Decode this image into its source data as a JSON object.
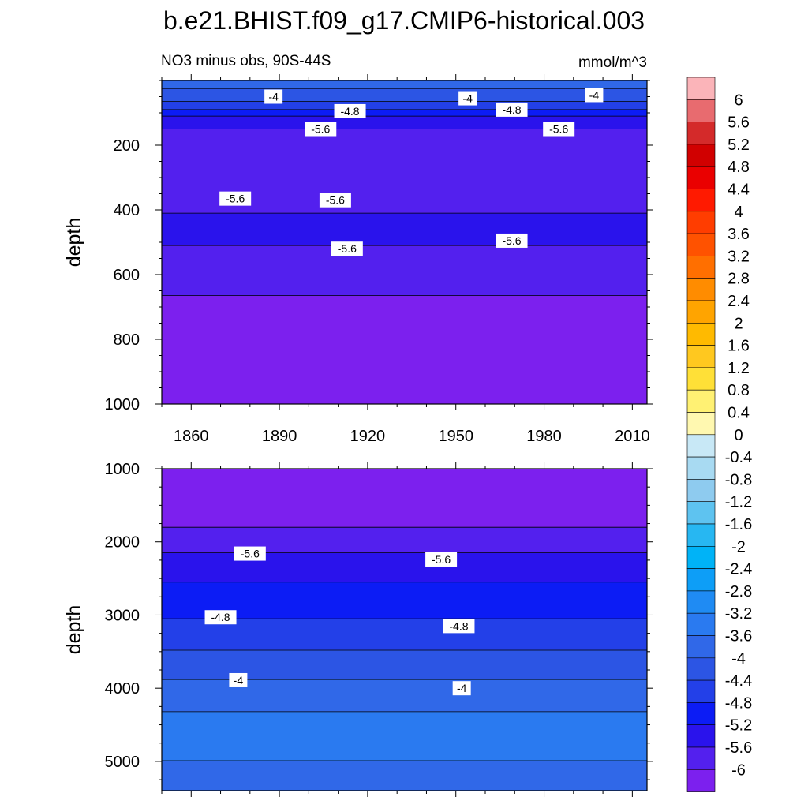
{
  "figure": {
    "title": "b.e21.BHIST.f09_g17.CMIP6-historical.003",
    "subtitle_left": "NO3 minus obs, 90S-44S",
    "subtitle_right": "mmol/m^3"
  },
  "chart_data": [
    {
      "type": "heatmap",
      "panel": "upper",
      "title": "NO3 minus obs, 90S-44S",
      "units": "mmol/m^3",
      "xlabel": "",
      "ylabel": "depth",
      "xlim": [
        1850,
        2015
      ],
      "ylim": [
        1000,
        0
      ],
      "xticks": [
        1860,
        1890,
        1920,
        1950,
        1980,
        2010
      ],
      "yticks": [
        200,
        400,
        600,
        800,
        1000
      ],
      "bands": [
        {
          "top": 0,
          "bottom": 25,
          "value": -3.6
        },
        {
          "top": 25,
          "bottom": 65,
          "value": -4.0
        },
        {
          "top": 65,
          "bottom": 90,
          "value": -4.4
        },
        {
          "top": 90,
          "bottom": 110,
          "value": -4.8
        },
        {
          "top": 110,
          "bottom": 150,
          "value": -5.2
        },
        {
          "top": 150,
          "bottom": 410,
          "value": -5.6
        },
        {
          "top": 410,
          "bottom": 510,
          "value": -5.2
        },
        {
          "top": 510,
          "bottom": 665,
          "value": -5.6
        },
        {
          "top": 665,
          "bottom": 1000,
          "value": -6.0
        }
      ],
      "contour_labels": [
        {
          "text": "-4",
          "x": 1888,
          "depth": 50
        },
        {
          "text": "-4",
          "x": 1954,
          "depth": 55
        },
        {
          "text": "-4",
          "x": 1997,
          "depth": 45
        },
        {
          "text": "-4.8",
          "x": 1914,
          "depth": 95
        },
        {
          "text": "-4.8",
          "x": 1969,
          "depth": 90
        },
        {
          "text": "-5.6",
          "x": 1904,
          "depth": 150
        },
        {
          "text": "-5.6",
          "x": 1985,
          "depth": 150
        },
        {
          "text": "-5.6",
          "x": 1875,
          "depth": 365
        },
        {
          "text": "-5.6",
          "x": 1909,
          "depth": 370
        },
        {
          "text": "-5.6",
          "x": 1913,
          "depth": 520
        },
        {
          "text": "-5.6",
          "x": 1969,
          "depth": 495
        }
      ]
    },
    {
      "type": "heatmap",
      "panel": "lower",
      "xlabel": "",
      "ylabel": "depth",
      "xlim": [
        1850,
        2015
      ],
      "ylim": [
        5400,
        1000
      ],
      "yticks": [
        1000,
        2000,
        3000,
        4000,
        5000
      ],
      "bands": [
        {
          "top": 1000,
          "bottom": 1800,
          "value": -6.0
        },
        {
          "top": 1800,
          "bottom": 2150,
          "value": -5.6
        },
        {
          "top": 2150,
          "bottom": 2550,
          "value": -5.2
        },
        {
          "top": 2550,
          "bottom": 3050,
          "value": -4.8
        },
        {
          "top": 3050,
          "bottom": 3480,
          "value": -4.4
        },
        {
          "top": 3480,
          "bottom": 3880,
          "value": -4.0
        },
        {
          "top": 3880,
          "bottom": 4320,
          "value": -3.6
        },
        {
          "top": 4320,
          "bottom": 4990,
          "value": -3.2
        },
        {
          "top": 4990,
          "bottom": 5400,
          "value": -3.6
        }
      ],
      "contour_labels": [
        {
          "text": "-5.6",
          "x": 1880,
          "depth": 2160
        },
        {
          "text": "-5.6",
          "x": 1945,
          "depth": 2240
        },
        {
          "text": "-4.8",
          "x": 1870,
          "depth": 3030
        },
        {
          "text": "-4.8",
          "x": 1951,
          "depth": 3150
        },
        {
          "text": "-4",
          "x": 1876,
          "depth": 3890
        },
        {
          "text": "-4",
          "x": 1952,
          "depth": 4000
        }
      ]
    }
  ],
  "colorbar": {
    "labels": [
      "6",
      "5.6",
      "5.2",
      "4.8",
      "4.4",
      "4",
      "3.6",
      "3.2",
      "2.8",
      "2.4",
      "2",
      "1.6",
      "1.2",
      "0.8",
      "0.4",
      "0",
      "-0.4",
      "-0.8",
      "-1.2",
      "-1.6",
      "-2",
      "-2.4",
      "-2.8",
      "-3.2",
      "-3.6",
      "-4",
      "-4.4",
      "-4.8",
      "-5.2",
      "-5.6",
      "-6"
    ],
    "colors": [
      "#fbb4b9",
      "#e86b6f",
      "#d42a2a",
      "#d10000",
      "#ea0000",
      "#ff1a00",
      "#ff3d00",
      "#ff5200",
      "#ff6f00",
      "#ff8c00",
      "#ffa400",
      "#ffba00",
      "#ffc81f",
      "#ffe037",
      "#fff173",
      "#fff8b0",
      "#c8e8f6",
      "#a8daf2",
      "#8ecbef",
      "#5ec3f0",
      "#27b7f2",
      "#00b3f7",
      "#0d9ef7",
      "#1f8bf3",
      "#2a7af0",
      "#3068e8",
      "#2c55e4",
      "#2340e8",
      "#0c1cf5",
      "#2a13ec",
      "#5320ee",
      "#7c20ee"
    ]
  }
}
